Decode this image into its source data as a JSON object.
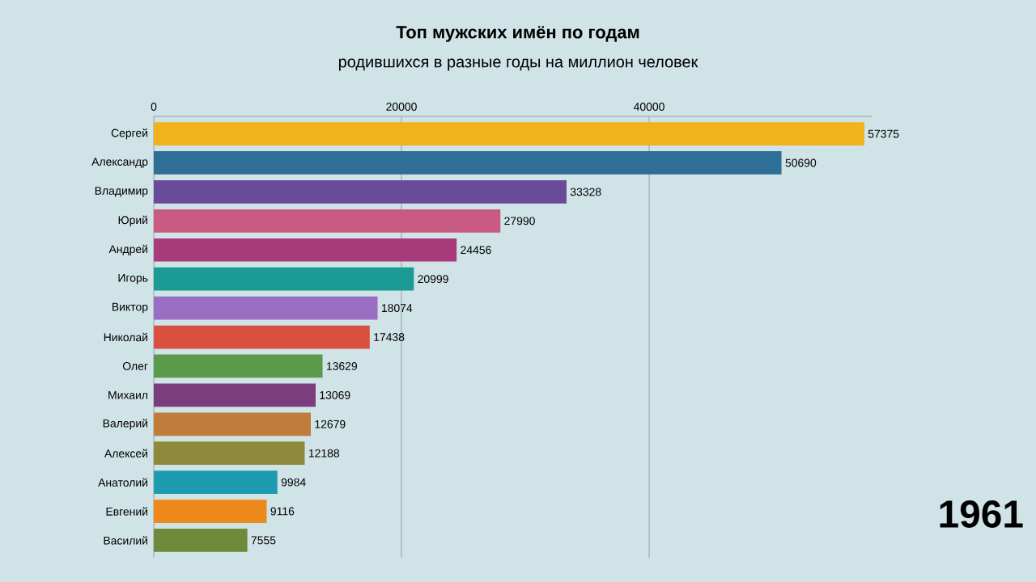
{
  "chart_data": {
    "type": "bar",
    "orientation": "horizontal",
    "title": "Топ мужских имён по годам",
    "subtitle": "родившихся в разные годы на миллион человек",
    "categories": [
      "Сергей",
      "Александр",
      "Владимир",
      "Юрий",
      "Андрей",
      "Игорь",
      "Виктор",
      "Николай",
      "Олег",
      "Михаил",
      "Валерий",
      "Алексей",
      "Анатолий",
      "Евгений",
      "Василий"
    ],
    "values": [
      57375,
      50690,
      33328,
      27990,
      24456,
      20999,
      18074,
      17438,
      13629,
      13069,
      12679,
      12188,
      9984,
      9116,
      7555
    ],
    "colors": [
      "#f2b21b",
      "#2e6e97",
      "#6a4a9b",
      "#c95b82",
      "#a83b7b",
      "#1b9b93",
      "#9a6ec2",
      "#d9503f",
      "#5b9a4a",
      "#7b3d7b",
      "#c07c3b",
      "#8f8a3b",
      "#1f9bb0",
      "#ee8a1b",
      "#6f8a3b"
    ],
    "xlim": [
      0,
      58000
    ],
    "xticks": [
      0,
      20000,
      40000
    ],
    "grid": "x",
    "data_labels": true,
    "annotations": [
      "1961"
    ]
  }
}
